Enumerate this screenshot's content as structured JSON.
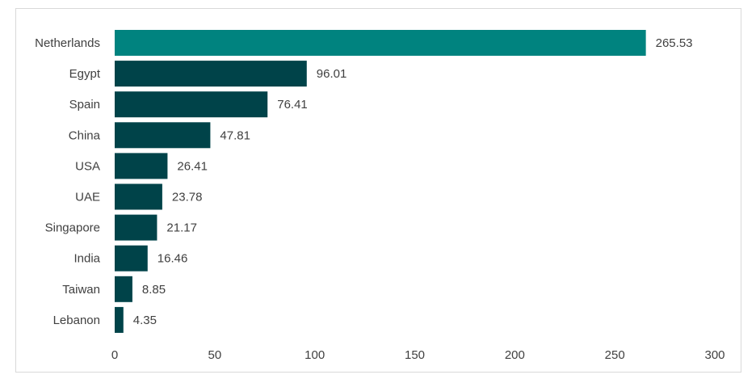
{
  "chart_data": {
    "type": "bar",
    "orientation": "horizontal",
    "categories": [
      "Netherlands",
      "Egypt",
      "Spain",
      "China",
      "USA",
      "UAE",
      "Singapore",
      "India",
      "Taiwan",
      "Lebanon"
    ],
    "values": [
      265.53,
      96.01,
      76.41,
      47.81,
      26.41,
      23.78,
      21.17,
      16.46,
      8.85,
      4.35
    ],
    "value_labels": [
      "265.53",
      "96.01",
      "76.41",
      "47.81",
      "26.41",
      "23.78",
      "21.17",
      "16.46",
      "8.85",
      "4.35"
    ],
    "xlim": [
      0,
      300
    ],
    "xticks": [
      0,
      50,
      100,
      150,
      200,
      250,
      300
    ],
    "grid": false,
    "legend": "none",
    "title": "",
    "xlabel": "",
    "ylabel": "",
    "colors": {
      "highlight": "#00837f",
      "bar": "#004349"
    }
  }
}
